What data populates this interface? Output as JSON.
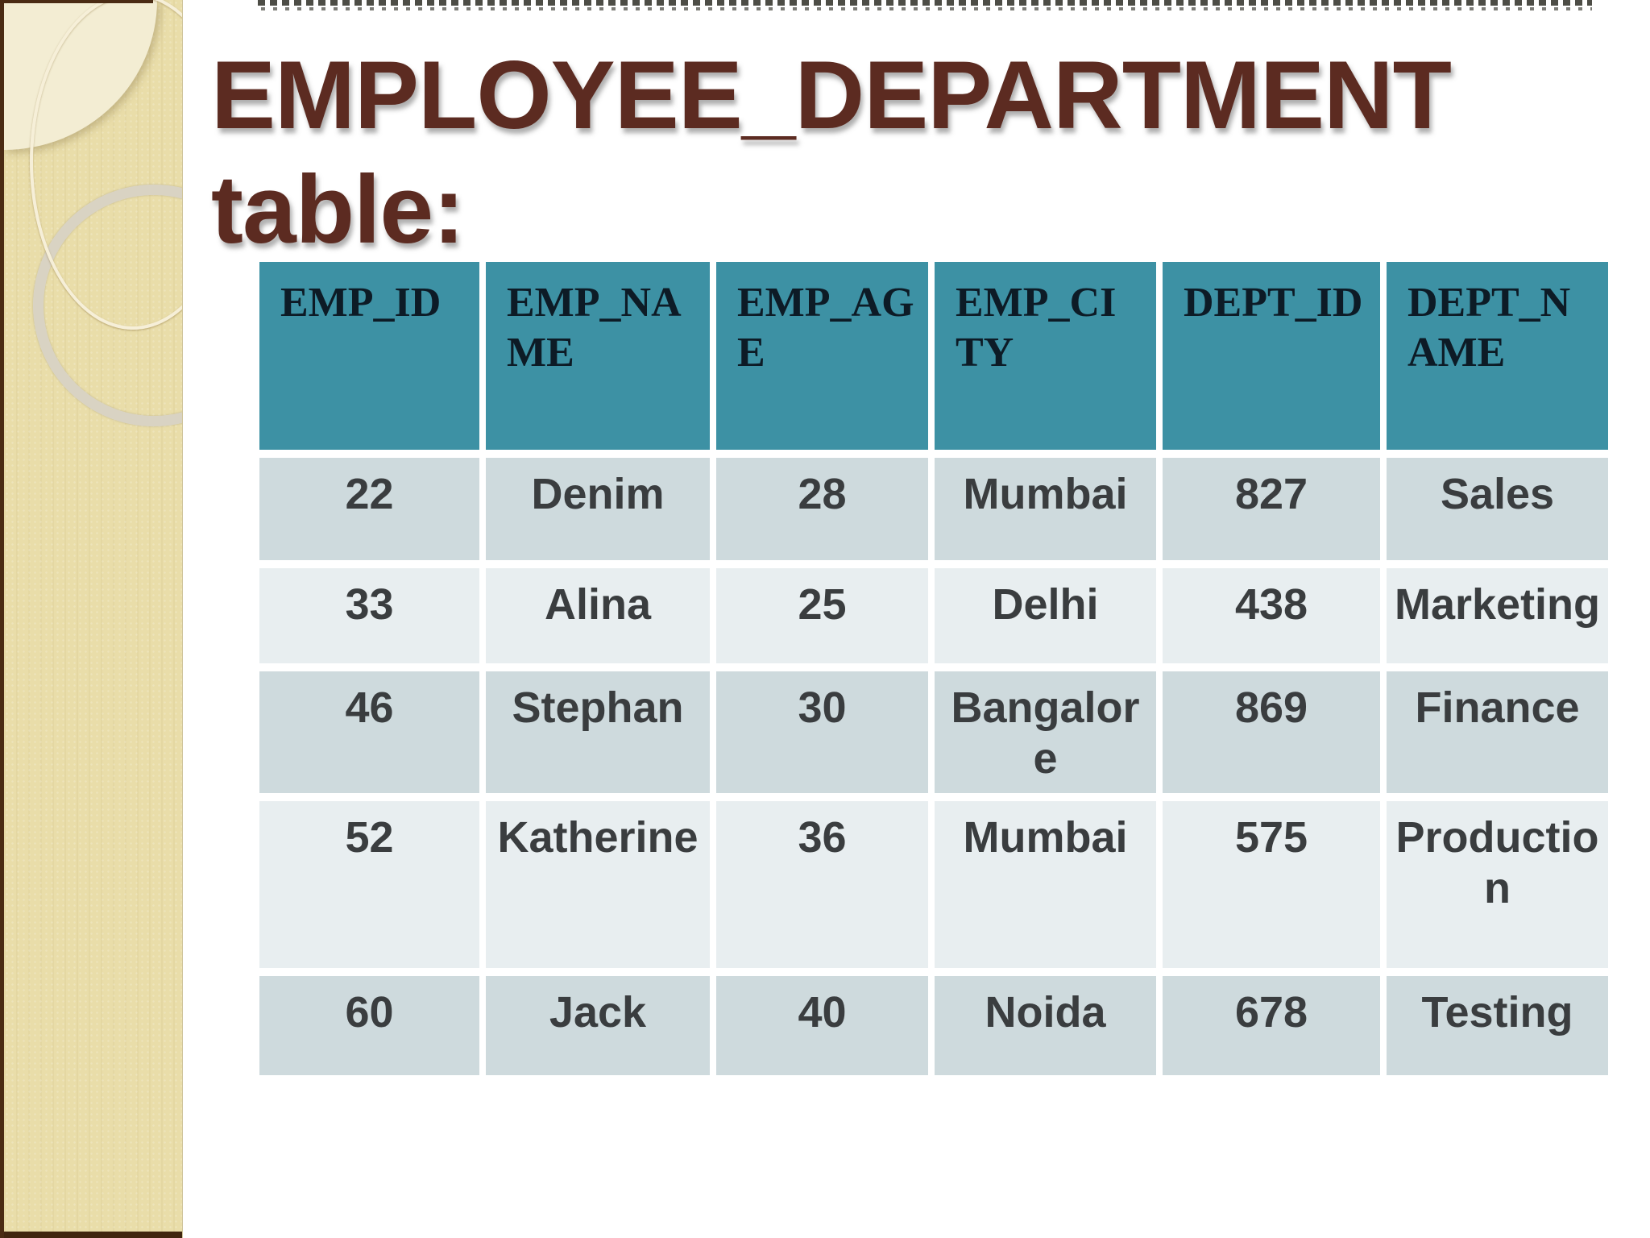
{
  "slide": {
    "title": "EMPLOYEE_DEPARTMENT\ntable:"
  },
  "table": {
    "headers": [
      "EMP_ID",
      "EMP_NA\nME",
      "EMP_AG\nE",
      "EMP_CI\nTY",
      "DEPT_ID",
      "DEPT_N\nAME"
    ],
    "rows": [
      [
        "22",
        "Denim",
        "28",
        "Mumbai",
        "827",
        "Sales"
      ],
      [
        "33",
        "Alina",
        "25",
        "Delhi",
        "438",
        "Marketing"
      ],
      [
        "46",
        "Stephan",
        "30",
        "Bangalor\ne",
        "869",
        "Finance"
      ],
      [
        "52",
        "Katherine",
        "36",
        "Mumbai",
        "575",
        "Productio\nn"
      ],
      [
        "60",
        "Jack",
        "40",
        "Noida",
        "678",
        "Testing"
      ]
    ]
  },
  "colors": {
    "title_text": "#5C2B21",
    "header_bg": "#3D91A4",
    "header_text": "#0D1B26",
    "row_odd_bg": "#CEDADD",
    "row_even_bg": "#E8EEF0",
    "cell_text": "#3A3D3F",
    "sidebar_bg": "#E9DDA9",
    "sidebar_frame": "#4A2B13",
    "slide_bg": "#FFFFFF"
  }
}
